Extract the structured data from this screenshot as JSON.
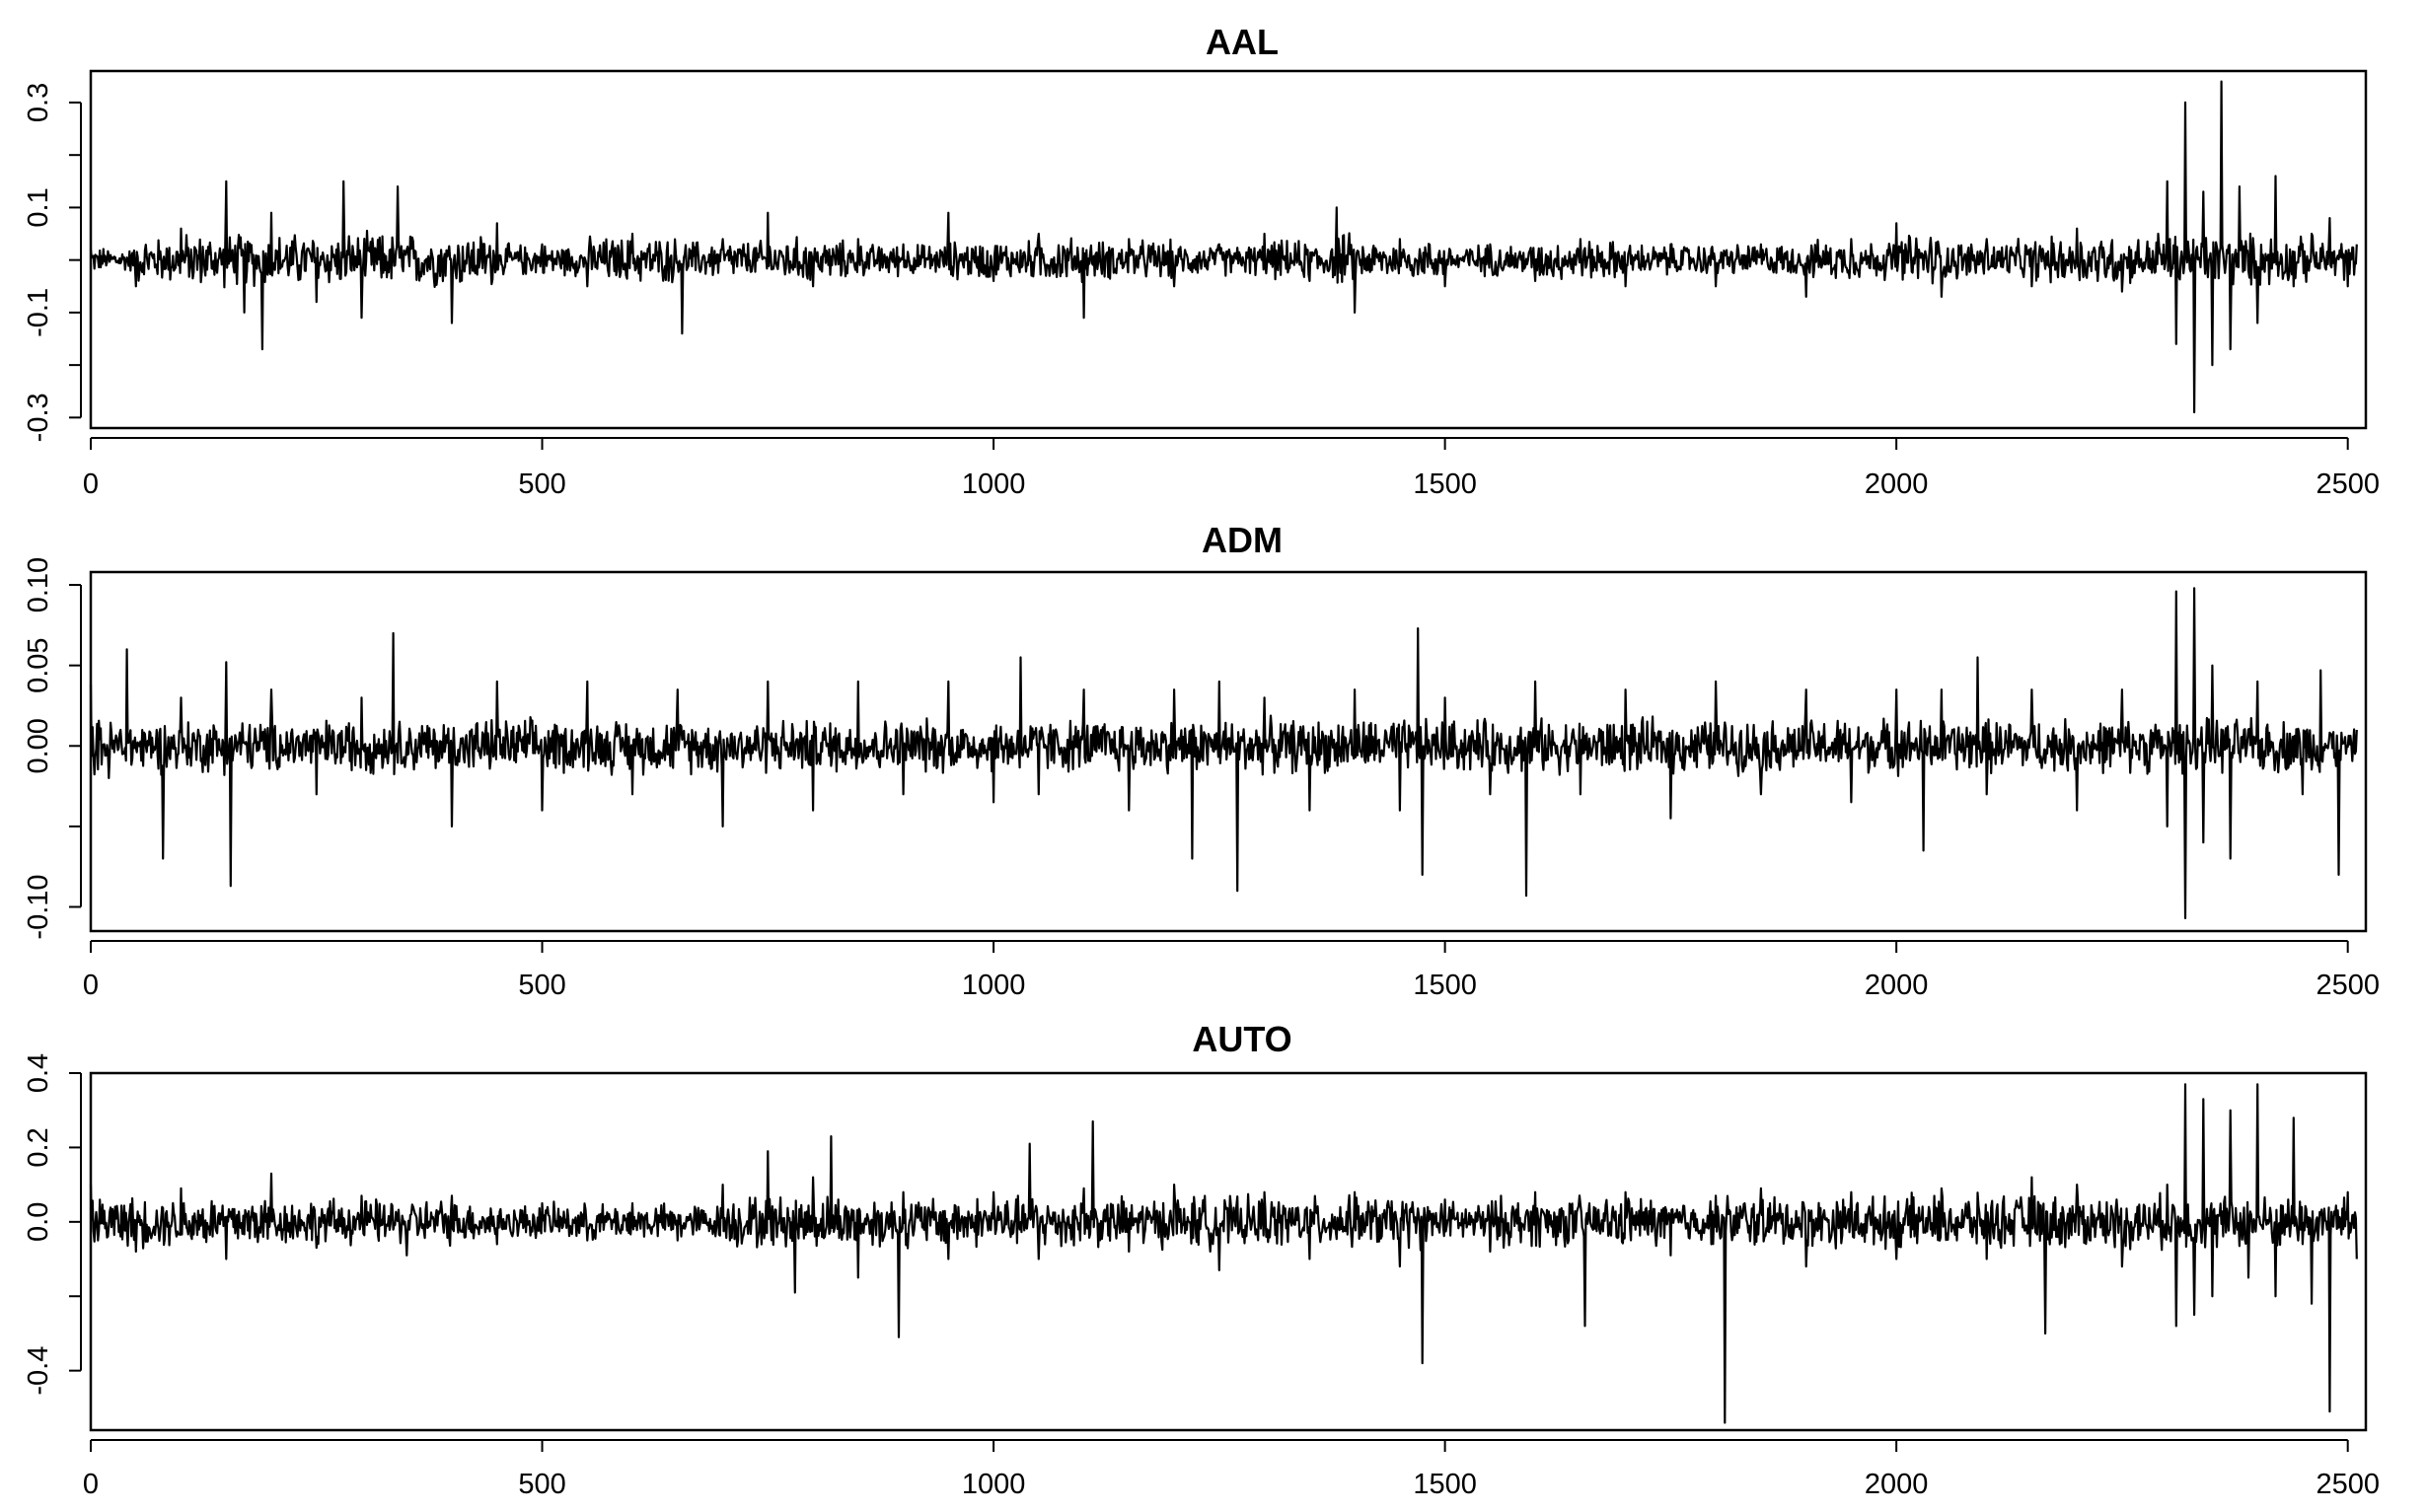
{
  "chart_data": [
    {
      "type": "line",
      "title": "AAL",
      "xlim": [
        0,
        2520
      ],
      "ylim": [
        -0.32,
        0.36
      ],
      "x_ticks": [
        0,
        500,
        1000,
        1500,
        2000,
        2500
      ],
      "x_tick_labels": [
        "0",
        "500",
        "1000",
        "1500",
        "2000",
        "2500"
      ],
      "y_ticks": [
        -0.3,
        -0.2,
        -0.1,
        0,
        0.1,
        0.2,
        0.3
      ],
      "y_tick_labels": [
        "-0.3",
        "",
        "-0.1",
        "",
        "0.1",
        "",
        "0.3"
      ],
      "series": [
        {
          "x": [
            0,
            50,
            100,
            150,
            170,
            190,
            200,
            250,
            280,
            300,
            340,
            400,
            450,
            500,
            550,
            600,
            655,
            700,
            750,
            800,
            850,
            900,
            950,
            1000,
            1050,
            1100,
            1150,
            1200,
            1250,
            1300,
            1350,
            1380,
            1400,
            1450,
            1500,
            1550,
            1600,
            1650,
            1700,
            1750,
            1800,
            1850,
            1900,
            1950,
            2000,
            2050,
            2100,
            2150,
            2200,
            2250,
            2290,
            2300,
            2310,
            2320,
            2330,
            2340,
            2350,
            2360,
            2370,
            2380,
            2400,
            2420,
            2440,
            2460,
            2480,
            2500,
            2510
          ],
          "y": [
            0.02,
            -0.05,
            0.06,
            0.15,
            -0.1,
            -0.17,
            0.09,
            -0.08,
            0.15,
            -0.11,
            0.14,
            -0.12,
            0.07,
            0.03,
            -0.05,
            0.05,
            -0.14,
            0.04,
            0.09,
            -0.05,
            0.04,
            0.03,
            0.09,
            -0.04,
            0.05,
            -0.11,
            0.04,
            -0.05,
            0.03,
            0.05,
            -0.04,
            0.1,
            -0.1,
            0.04,
            -0.05,
            0.03,
            -0.04,
            0.04,
            -0.05,
            0.03,
            -0.05,
            0.03,
            -0.07,
            0.04,
            0.07,
            -0.07,
            0.04,
            -0.05,
            0.06,
            -0.06,
            0.05,
            0.15,
            -0.16,
            0.3,
            -0.29,
            0.13,
            -0.2,
            0.34,
            -0.17,
            0.14,
            -0.12,
            0.16,
            -0.05,
            0.05,
            0.08,
            -0.05,
            0.03
          ]
        }
      ]
    },
    {
      "type": "line",
      "title": "ADM",
      "xlim": [
        0,
        2520
      ],
      "ylim": [
        -0.115,
        0.108
      ],
      "x_ticks": [
        0,
        500,
        1000,
        1500,
        2000,
        2500
      ],
      "x_tick_labels": [
        "0",
        "500",
        "1000",
        "1500",
        "2000",
        "2500"
      ],
      "y_ticks": [
        -0.1,
        -0.05,
        0,
        0.05,
        0.1
      ],
      "y_tick_labels": [
        "-0.10",
        "",
        "0.00",
        "0.05",
        "0.10"
      ],
      "series": [
        {
          "x": [
            0,
            20,
            40,
            80,
            100,
            150,
            155,
            200,
            250,
            300,
            335,
            400,
            450,
            500,
            550,
            600,
            650,
            700,
            750,
            800,
            850,
            900,
            950,
            1000,
            1030,
            1050,
            1100,
            1150,
            1200,
            1220,
            1250,
            1270,
            1300,
            1350,
            1400,
            1450,
            1470,
            1475,
            1500,
            1550,
            1590,
            1600,
            1650,
            1700,
            1750,
            1800,
            1850,
            1900,
            1950,
            2000,
            2030,
            2050,
            2090,
            2100,
            2150,
            2200,
            2250,
            2300,
            2310,
            2320,
            2330,
            2340,
            2350,
            2370,
            2400,
            2450,
            2470,
            2490,
            2510
          ],
          "y": [
            0.038,
            -0.02,
            0.06,
            -0.07,
            0.03,
            0.052,
            -0.087,
            0.035,
            -0.03,
            0.03,
            0.07,
            -0.05,
            0.04,
            -0.04,
            0.04,
            -0.03,
            0.035,
            -0.05,
            0.04,
            -0.04,
            0.04,
            -0.03,
            0.04,
            -0.035,
            0.055,
            -0.03,
            0.035,
            -0.04,
            0.035,
            -0.07,
            0.04,
            -0.09,
            0.03,
            -0.04,
            0.035,
            -0.04,
            0.073,
            -0.08,
            0.03,
            -0.03,
            -0.093,
            0.04,
            -0.03,
            0.035,
            -0.045,
            0.04,
            -0.03,
            0.035,
            -0.035,
            0.035,
            -0.065,
            0.035,
            0.055,
            -0.03,
            0.035,
            -0.04,
            0.035,
            -0.05,
            0.096,
            -0.107,
            0.098,
            -0.06,
            0.05,
            -0.07,
            0.04,
            -0.03,
            0.047,
            -0.08,
            0.01
          ]
        }
      ]
    },
    {
      "type": "line",
      "title": "AUTO",
      "xlim": [
        0,
        2520
      ],
      "ylim": [
        -0.56,
        0.4
      ],
      "x_ticks": [
        0,
        500,
        1000,
        1500,
        2000,
        2500
      ],
      "x_tick_labels": [
        "0",
        "500",
        "1000",
        "1500",
        "2000",
        "2500"
      ],
      "y_ticks": [
        -0.4,
        -0.2,
        0,
        0.2,
        0.4
      ],
      "y_tick_labels": [
        "-0.4",
        "",
        "0.0",
        "0.2",
        "0.4"
      ],
      "series": [
        {
          "x": [
            0,
            50,
            100,
            150,
            200,
            250,
            300,
            350,
            400,
            450,
            500,
            550,
            600,
            650,
            700,
            750,
            780,
            800,
            820,
            850,
            895,
            900,
            950,
            1000,
            1040,
            1050,
            1100,
            1110,
            1150,
            1200,
            1250,
            1300,
            1350,
            1400,
            1450,
            1475,
            1500,
            1550,
            1600,
            1655,
            1700,
            1750,
            1800,
            1810,
            1850,
            1900,
            1950,
            2000,
            2050,
            2100,
            2150,
            2165,
            2200,
            2250,
            2300,
            2310,
            2320,
            2330,
            2340,
            2350,
            2370,
            2390,
            2400,
            2420,
            2440,
            2460,
            2480,
            2500,
            2510
          ],
          "y": [
            0.1,
            -0.08,
            0.09,
            -0.1,
            0.13,
            -0.07,
            0.07,
            -0.09,
            0.07,
            -0.06,
            0.05,
            -0.05,
            0.05,
            -0.05,
            0.1,
            0.19,
            -0.19,
            0.12,
            0.23,
            -0.15,
            -0.31,
            0.08,
            -0.1,
            0.08,
            0.21,
            -0.1,
            0.09,
            0.27,
            -0.08,
            0.1,
            -0.13,
            0.08,
            -0.1,
            0.08,
            -0.12,
            -0.38,
            0.06,
            -0.08,
            0.08,
            -0.28,
            0.08,
            -0.09,
            0.07,
            -0.54,
            0.09,
            -0.12,
            0.08,
            -0.1,
            0.09,
            -0.1,
            0.12,
            -0.3,
            0.1,
            -0.12,
            0.1,
            -0.28,
            0.37,
            -0.25,
            0.33,
            -0.2,
            0.3,
            -0.15,
            0.37,
            -0.2,
            0.28,
            -0.22,
            -0.51,
            0.08,
            -0.1
          ]
        }
      ]
    }
  ]
}
